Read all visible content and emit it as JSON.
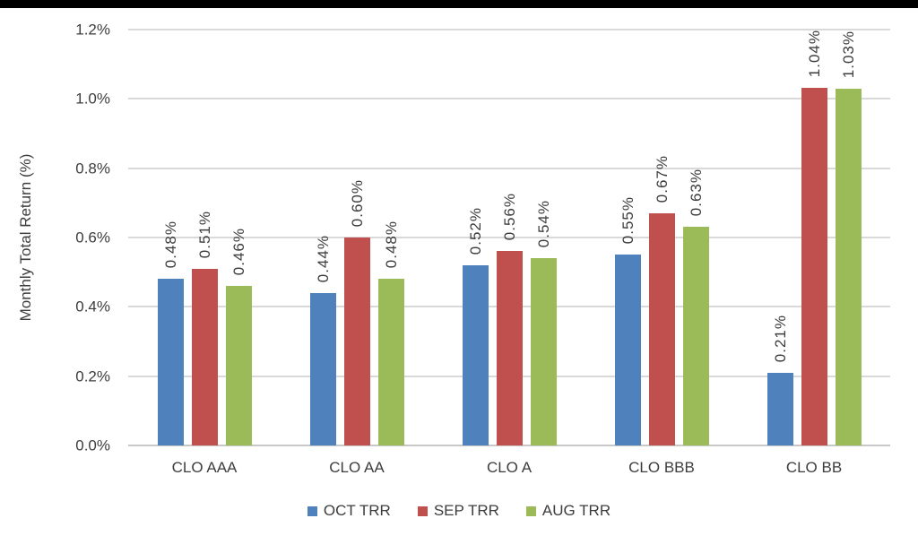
{
  "window": {
    "top_bar_color": "#000000",
    "background_color": "#ffffff",
    "text_color": "#3d3d3d"
  },
  "chart_data": {
    "type": "bar",
    "title": "",
    "ylabel": "Monthly Total Return (%)",
    "xlabel": "",
    "categories": [
      "CLO AAA",
      "CLO AA",
      "CLO A",
      "CLO BBB",
      "CLO BB"
    ],
    "series": [
      {
        "name": "OCT TRR",
        "color": "#4F81BD",
        "values": [
          0.48,
          0.44,
          0.52,
          0.55,
          0.21
        ],
        "labels": [
          "0.48%",
          "0.44%",
          "0.52%",
          "0.55%",
          "0.21%"
        ]
      },
      {
        "name": "SEP TRR",
        "color": "#C0504D",
        "values": [
          0.51,
          0.6,
          0.56,
          0.67,
          1.04
        ],
        "labels": [
          "0.51%",
          "0.60%",
          "0.56%",
          "0.67%",
          "1.04%"
        ]
      },
      {
        "name": "AUG TRR",
        "color": "#9BBB59",
        "values": [
          0.46,
          0.48,
          0.54,
          0.63,
          1.03
        ],
        "labels": [
          "0.46%",
          "0.48%",
          "0.54%",
          "0.63%",
          "1.03%"
        ]
      }
    ],
    "ylim": [
      0,
      1.2
    ],
    "yticks": [
      0.0,
      0.2,
      0.4,
      0.6,
      0.8,
      1.0,
      1.2
    ],
    "ytick_labels": [
      "0.0%",
      "0.2%",
      "0.4%",
      "0.6%",
      "0.8%",
      "1.0%",
      "1.2%"
    ],
    "grid": true,
    "gridline_color": "#D9D9D9",
    "axis_line_color": "#C8C8C8",
    "data_labels_rotated": true,
    "legend_position": "bottom"
  }
}
